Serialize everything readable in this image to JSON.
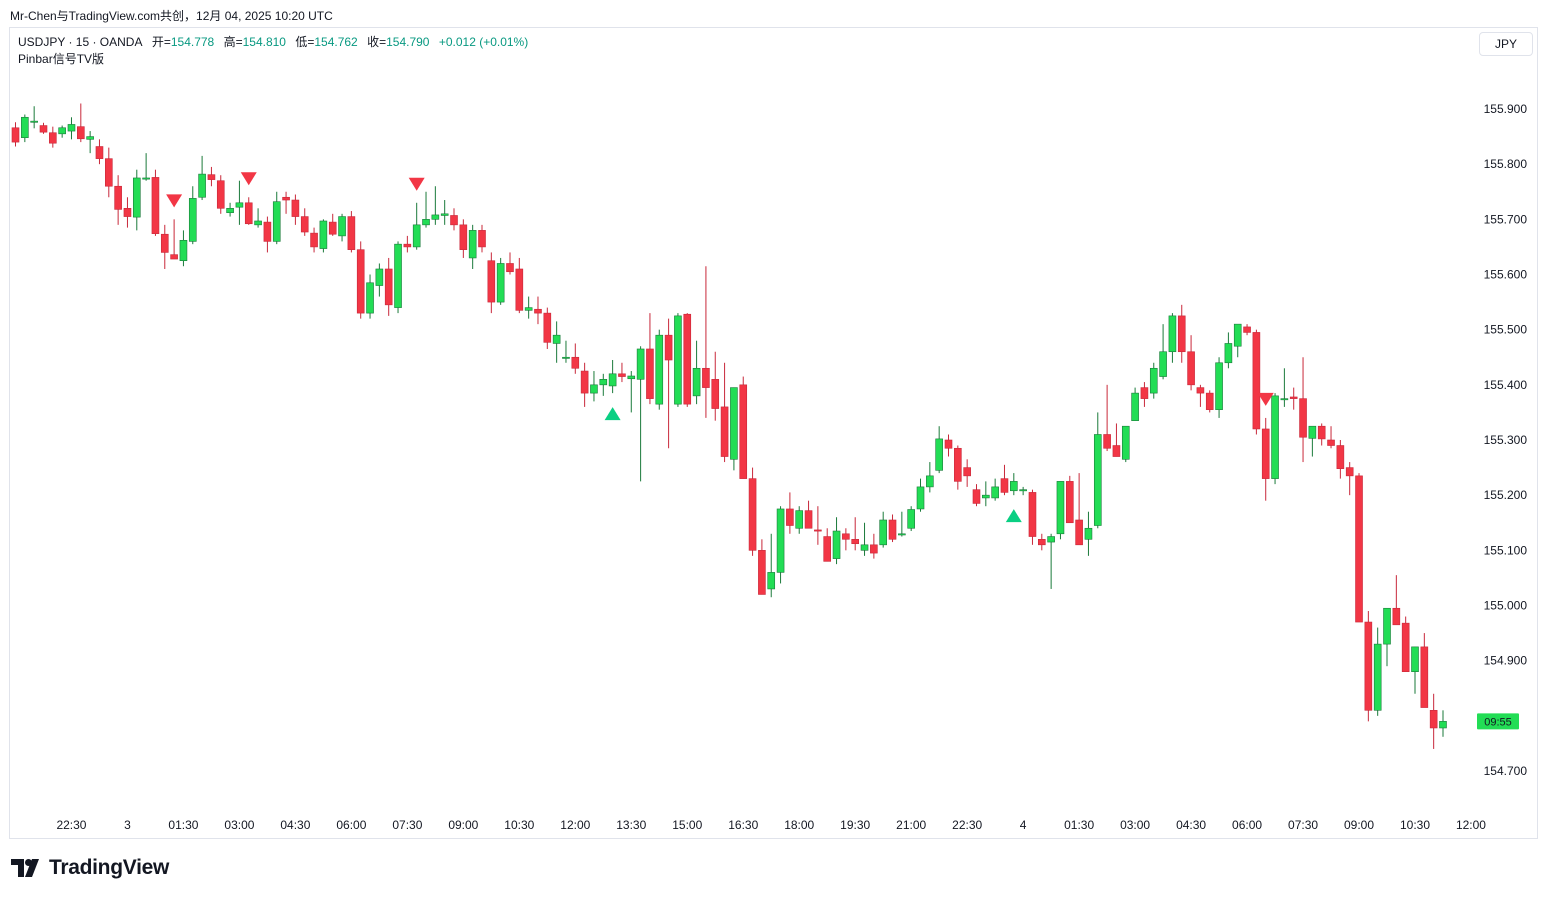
{
  "header": {
    "text": "Mr-Chen与TradingView.com共创，12月 04, 2025 10:20 UTC"
  },
  "legend": {
    "symbol_line": "USDJPY · 15 · OANDA",
    "open_label": "开=",
    "open_value": "154.778",
    "high_label": "高=",
    "high_value": "154.810",
    "low_label": "低=",
    "low_value": "154.762",
    "close_label": "收=",
    "close_value": "154.790",
    "change": "+0.012 (+0.01%)",
    "indicator": "Pinbar信号TV版"
  },
  "currency_button": "JPY",
  "brand": "TradingView",
  "colors": {
    "up": "#22dd55",
    "down": "#f23645",
    "signal_up": "#0acf83",
    "signal_down": "#f23645",
    "text": "#131722",
    "axis_text": "#131722"
  },
  "chart_data": {
    "type": "candlestick",
    "title": "USDJPY · 15 · OANDA",
    "y_ticks": [
      "155.900",
      "155.800",
      "155.700",
      "155.600",
      "155.500",
      "155.400",
      "155.300",
      "155.200",
      "155.100",
      "155.000",
      "154.900",
      "154.700"
    ],
    "ylim": [
      154.635,
      156.01
    ],
    "x_ticks": [
      "22:30",
      "3",
      "01:30",
      "03:00",
      "04:30",
      "06:00",
      "07:30",
      "09:00",
      "10:30",
      "12:00",
      "13:30",
      "15:00",
      "16:30",
      "18:00",
      "19:30",
      "21:00",
      "22:30",
      "4",
      "01:30",
      "03:00",
      "04:30",
      "06:00",
      "07:30",
      "09:00",
      "10:30",
      "12:00"
    ],
    "x_tick_slots": [
      6,
      12,
      18,
      24,
      30,
      36,
      42,
      48,
      54,
      60,
      66,
      72,
      78,
      84,
      90,
      96,
      102,
      108,
      114,
      120,
      126,
      132,
      138,
      144,
      150,
      156
    ],
    "first_slot": 0,
    "candles_ohlc": [
      [
        155.866,
        155.876,
        155.832,
        155.84
      ],
      [
        155.848,
        155.89,
        155.84,
        155.885
      ],
      [
        155.878,
        155.905,
        155.865,
        155.878
      ],
      [
        155.87,
        155.875,
        155.855,
        155.858
      ],
      [
        155.857,
        155.868,
        155.83,
        155.838
      ],
      [
        155.855,
        155.87,
        155.848,
        155.866
      ],
      [
        155.86,
        155.885,
        155.845,
        155.872
      ],
      [
        155.868,
        155.91,
        155.84,
        155.846
      ],
      [
        155.845,
        155.86,
        155.82,
        155.85
      ],
      [
        155.832,
        155.845,
        155.8,
        155.81
      ],
      [
        155.81,
        155.83,
        155.74,
        155.76
      ],
      [
        155.76,
        155.78,
        155.69,
        155.718
      ],
      [
        155.72,
        155.74,
        155.685,
        155.705
      ],
      [
        155.704,
        155.79,
        155.68,
        155.775
      ],
      [
        155.775,
        155.82,
        155.77,
        155.775
      ],
      [
        155.776,
        155.79,
        155.67,
        155.674
      ],
      [
        155.673,
        155.69,
        155.61,
        155.64
      ],
      [
        155.636,
        155.7,
        155.63,
        155.628
      ],
      [
        155.625,
        155.68,
        155.615,
        155.662
      ],
      [
        155.66,
        155.76,
        155.655,
        155.738
      ],
      [
        155.74,
        155.815,
        155.735,
        155.782
      ],
      [
        155.781,
        155.795,
        155.76,
        155.772
      ],
      [
        155.77,
        155.78,
        155.71,
        155.72
      ],
      [
        155.712,
        155.73,
        155.705,
        155.72
      ],
      [
        155.722,
        155.77,
        155.69,
        155.73
      ],
      [
        155.73,
        155.74,
        155.69,
        155.692
      ],
      [
        155.69,
        155.72,
        155.685,
        155.697
      ],
      [
        155.695,
        155.705,
        155.64,
        155.66
      ],
      [
        155.66,
        155.75,
        155.655,
        155.732
      ],
      [
        155.74,
        155.75,
        155.71,
        155.735
      ],
      [
        155.735,
        155.745,
        155.69,
        155.705
      ],
      [
        155.705,
        155.72,
        155.67,
        155.677
      ],
      [
        155.675,
        155.685,
        155.64,
        155.65
      ],
      [
        155.647,
        155.7,
        155.64,
        155.697
      ],
      [
        155.695,
        155.71,
        155.67,
        155.673
      ],
      [
        155.67,
        155.71,
        155.66,
        155.705
      ],
      [
        155.705,
        155.715,
        155.64,
        155.645
      ],
      [
        155.645,
        155.66,
        155.52,
        155.53
      ],
      [
        155.53,
        155.6,
        155.52,
        155.585
      ],
      [
        155.58,
        155.62,
        155.56,
        155.61
      ],
      [
        155.61,
        155.63,
        155.525,
        155.545
      ],
      [
        155.54,
        155.66,
        155.53,
        155.655
      ],
      [
        155.655,
        155.67,
        155.64,
        155.65
      ],
      [
        155.65,
        155.73,
        155.645,
        155.69
      ],
      [
        155.69,
        155.75,
        155.685,
        155.7
      ],
      [
        155.7,
        155.76,
        155.69,
        155.708
      ],
      [
        155.707,
        155.735,
        155.69,
        155.71
      ],
      [
        155.707,
        155.72,
        155.68,
        155.69
      ],
      [
        155.69,
        155.7,
        155.63,
        155.645
      ],
      [
        155.63,
        155.69,
        155.61,
        155.68
      ],
      [
        155.68,
        155.69,
        155.64,
        155.65
      ],
      [
        155.625,
        155.64,
        155.53,
        155.55
      ],
      [
        155.55,
        155.63,
        155.545,
        155.62
      ],
      [
        155.62,
        155.64,
        155.6,
        155.605
      ],
      [
        155.61,
        155.63,
        155.53,
        155.535
      ],
      [
        155.535,
        155.56,
        155.52,
        155.54
      ],
      [
        155.537,
        155.56,
        155.51,
        155.53
      ],
      [
        155.53,
        155.54,
        155.465,
        155.477
      ],
      [
        155.475,
        155.515,
        155.44,
        155.49
      ],
      [
        155.45,
        155.48,
        155.44,
        155.45
      ],
      [
        155.45,
        155.475,
        155.42,
        155.43
      ],
      [
        155.425,
        155.44,
        155.36,
        155.385
      ],
      [
        155.385,
        155.425,
        155.37,
        155.4
      ],
      [
        155.4,
        155.42,
        155.38,
        155.41
      ],
      [
        155.398,
        155.445,
        155.385,
        155.42
      ],
      [
        155.42,
        155.44,
        155.405,
        155.415
      ],
      [
        155.411,
        155.425,
        155.35,
        155.416
      ],
      [
        155.41,
        155.47,
        155.225,
        155.465
      ],
      [
        155.465,
        155.53,
        155.365,
        155.375
      ],
      [
        155.365,
        155.5,
        155.355,
        155.49
      ],
      [
        155.49,
        155.52,
        155.285,
        155.445
      ],
      [
        155.365,
        155.53,
        155.36,
        155.525
      ],
      [
        155.528,
        155.53,
        155.36,
        155.365
      ],
      [
        155.38,
        155.48,
        155.365,
        155.43
      ],
      [
        155.43,
        155.615,
        155.34,
        155.395
      ],
      [
        155.41,
        155.46,
        155.335,
        155.357
      ],
      [
        155.36,
        155.44,
        155.26,
        155.27
      ],
      [
        155.265,
        155.395,
        155.245,
        155.395
      ],
      [
        155.4,
        155.415,
        155.23,
        155.23
      ],
      [
        155.23,
        155.25,
        155.09,
        155.1
      ],
      [
        155.1,
        155.12,
        155.02,
        155.02
      ],
      [
        155.03,
        155.13,
        155.015,
        155.06
      ],
      [
        155.06,
        155.18,
        155.04,
        155.175
      ],
      [
        155.175,
        155.205,
        155.13,
        155.145
      ],
      [
        155.14,
        155.18,
        155.13,
        155.172
      ],
      [
        155.172,
        155.19,
        155.14,
        155.14
      ],
      [
        155.137,
        155.18,
        155.11,
        155.135
      ],
      [
        155.125,
        155.14,
        155.08,
        155.08
      ],
      [
        155.085,
        155.16,
        155.075,
        155.135
      ],
      [
        155.13,
        155.14,
        155.1,
        155.12
      ],
      [
        155.12,
        155.16,
        155.1,
        155.112
      ],
      [
        155.1,
        155.15,
        155.09,
        155.11
      ],
      [
        155.11,
        155.13,
        155.085,
        155.095
      ],
      [
        155.11,
        155.17,
        155.105,
        155.155
      ],
      [
        155.155,
        155.165,
        155.115,
        155.12
      ],
      [
        155.13,
        155.17,
        155.125,
        155.13
      ],
      [
        155.14,
        155.18,
        155.135,
        155.174
      ],
      [
        155.175,
        155.23,
        155.17,
        155.215
      ],
      [
        155.215,
        155.26,
        155.205,
        155.235
      ],
      [
        155.245,
        155.325,
        155.24,
        155.302
      ],
      [
        155.3,
        155.31,
        155.27,
        155.285
      ],
      [
        155.285,
        155.29,
        155.21,
        155.225
      ],
      [
        155.25,
        155.265,
        155.215,
        155.235
      ],
      [
        155.21,
        155.22,
        155.18,
        155.185
      ],
      [
        155.195,
        155.225,
        155.18,
        155.2
      ],
      [
        155.195,
        155.23,
        155.19,
        155.215
      ],
      [
        155.23,
        155.255,
        155.2,
        155.205
      ],
      [
        155.208,
        155.24,
        155.2,
        155.225
      ],
      [
        155.21,
        155.215,
        155.2,
        155.21
      ],
      [
        155.205,
        155.21,
        155.11,
        155.125
      ],
      [
        155.12,
        155.13,
        155.1,
        155.11
      ],
      [
        155.115,
        155.13,
        155.03,
        155.125
      ],
      [
        155.13,
        155.225,
        155.12,
        155.225
      ],
      [
        155.225,
        155.235,
        155.15,
        155.15
      ],
      [
        155.155,
        155.24,
        155.15,
        155.11
      ],
      [
        155.12,
        155.17,
        155.09,
        155.14
      ],
      [
        155.145,
        155.35,
        155.14,
        155.31
      ],
      [
        155.31,
        155.4,
        155.28,
        155.285
      ],
      [
        155.29,
        155.33,
        155.27,
        155.27
      ],
      [
        155.265,
        155.32,
        155.26,
        155.325
      ],
      [
        155.335,
        155.395,
        155.335,
        155.385
      ],
      [
        155.395,
        155.405,
        155.36,
        155.375
      ],
      [
        155.385,
        155.44,
        155.375,
        155.43
      ],
      [
        155.415,
        155.51,
        155.41,
        155.46
      ],
      [
        155.46,
        155.53,
        155.44,
        155.525
      ],
      [
        155.525,
        155.545,
        155.44,
        155.46
      ],
      [
        155.46,
        155.49,
        155.39,
        155.4
      ],
      [
        155.395,
        155.4,
        155.36,
        155.385
      ],
      [
        155.385,
        155.39,
        155.35,
        155.355
      ],
      [
        155.355,
        155.45,
        155.34,
        155.44
      ],
      [
        155.44,
        155.495,
        155.43,
        155.475
      ],
      [
        155.47,
        155.505,
        155.45,
        155.51
      ],
      [
        155.505,
        155.51,
        155.49,
        155.495
      ],
      [
        155.495,
        155.5,
        155.31,
        155.32
      ],
      [
        155.32,
        155.34,
        155.19,
        155.23
      ],
      [
        155.23,
        155.385,
        155.22,
        155.38
      ],
      [
        155.375,
        155.43,
        155.36,
        155.375
      ],
      [
        155.378,
        155.395,
        155.355,
        155.375
      ],
      [
        155.375,
        155.45,
        155.26,
        155.305
      ],
      [
        155.303,
        155.325,
        155.27,
        155.325
      ],
      [
        155.325,
        155.33,
        155.29,
        155.302
      ],
      [
        155.3,
        155.325,
        155.285,
        155.29
      ],
      [
        155.29,
        155.3,
        155.23,
        155.248
      ],
      [
        155.25,
        155.26,
        155.2,
        155.235
      ],
      [
        155.235,
        155.24,
        154.98,
        154.97
      ],
      [
        154.97,
        154.99,
        154.79,
        154.81
      ],
      [
        154.81,
        154.96,
        154.8,
        154.93
      ],
      [
        154.93,
        154.995,
        154.89,
        154.995
      ],
      [
        154.995,
        155.055,
        154.97,
        154.965
      ],
      [
        154.968,
        154.98,
        154.9,
        154.88
      ],
      [
        154.88,
        154.925,
        154.84,
        154.925
      ],
      [
        154.925,
        154.95,
        154.82,
        154.815
      ],
      [
        154.81,
        154.84,
        154.74,
        154.778
      ],
      [
        154.778,
        154.81,
        154.762,
        154.79
      ]
    ],
    "signals": [
      {
        "slot": 17,
        "type": "sell"
      },
      {
        "slot": 25,
        "type": "sell"
      },
      {
        "slot": 43,
        "type": "sell"
      },
      {
        "slot": 64,
        "type": "buy"
      },
      {
        "slot": 107,
        "type": "buy"
      },
      {
        "slot": 134,
        "type": "sell"
      }
    ],
    "last_price_label": "09:55",
    "last_price_value": 154.79,
    "grid": false,
    "xlabel": "",
    "ylabel": ""
  }
}
